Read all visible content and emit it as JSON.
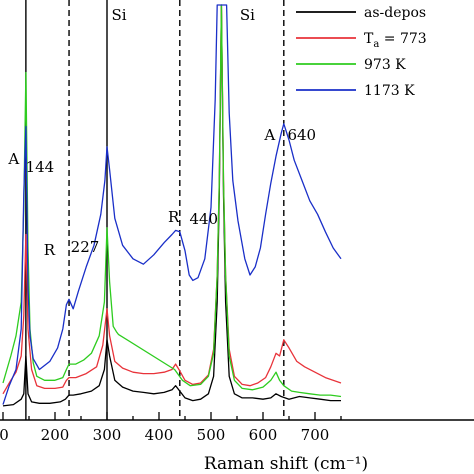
{
  "chart_data": {
    "type": "line",
    "xlabel": "Raman shift (cm⁻¹)",
    "xlim": [
      0,
      750
    ],
    "x_ticks": [
      "0",
      "200",
      "300",
      "400",
      "500",
      "600",
      "700"
    ],
    "x_tick_values": [
      0,
      200,
      300,
      400,
      500,
      600,
      700
    ],
    "ylabel": "",
    "y_ticks_shown": false,
    "reference_lines": [
      {
        "x": 144,
        "style": "solid",
        "label": "Si"
      },
      {
        "x": 227,
        "style": "dashed"
      },
      {
        "x": 440,
        "style": "dashed"
      },
      {
        "x": 640,
        "style": "dashed"
      },
      {
        "x": 300,
        "style": "solid"
      }
    ],
    "annotations": [
      {
        "text": "A",
        "x": 140
      },
      {
        "text": "144",
        "x": 144
      },
      {
        "text": "R",
        "x": 220
      },
      {
        "text": "227",
        "x": 227
      },
      {
        "text": "Si",
        "x": 300
      },
      {
        "text": "R",
        "x": 432
      },
      {
        "text": "440",
        "x": 440
      },
      {
        "text": "Si",
        "x": 520
      },
      {
        "text": "A",
        "x": 640
      },
      {
        "text": "640",
        "x": 640
      }
    ],
    "legend_position": "top-right",
    "legend": [
      {
        "label": "as-depos",
        "color": "#000000"
      },
      {
        "label_main": "T",
        "label_sub": "a",
        "label_rest": " = 773",
        "color": "#e8333a"
      },
      {
        "label": "973 K",
        "color": "#2ecc1f"
      },
      {
        "label": "1173 K",
        "color": "#1a2fc8"
      }
    ],
    "series": [
      {
        "name": "as-depos",
        "color": "#000000",
        "points": [
          [
            100,
            3
          ],
          [
            120,
            4
          ],
          [
            135,
            8
          ],
          [
            140,
            12
          ],
          [
            144,
            40
          ],
          [
            148,
            12
          ],
          [
            155,
            6
          ],
          [
            170,
            5
          ],
          [
            190,
            5
          ],
          [
            210,
            6
          ],
          [
            220,
            8
          ],
          [
            227,
            11
          ],
          [
            235,
            11
          ],
          [
            250,
            12
          ],
          [
            270,
            14
          ],
          [
            285,
            18
          ],
          [
            295,
            30
          ],
          [
            300,
            52
          ],
          [
            305,
            40
          ],
          [
            315,
            22
          ],
          [
            330,
            17
          ],
          [
            350,
            14
          ],
          [
            370,
            13
          ],
          [
            390,
            12
          ],
          [
            410,
            13
          ],
          [
            425,
            15
          ],
          [
            432,
            18
          ],
          [
            440,
            14
          ],
          [
            450,
            9
          ],
          [
            465,
            7
          ],
          [
            480,
            8
          ],
          [
            495,
            12
          ],
          [
            505,
            25
          ],
          [
            512,
            80
          ],
          [
            516,
            160
          ],
          [
            520,
            300
          ],
          [
            524,
            160
          ],
          [
            528,
            80
          ],
          [
            535,
            25
          ],
          [
            545,
            12
          ],
          [
            560,
            9
          ],
          [
            580,
            9
          ],
          [
            600,
            8
          ],
          [
            615,
            9
          ],
          [
            625,
            12
          ],
          [
            635,
            10
          ],
          [
            650,
            8
          ],
          [
            670,
            10
          ],
          [
            690,
            9
          ],
          [
            710,
            8
          ],
          [
            730,
            7
          ],
          [
            750,
            7
          ]
        ]
      },
      {
        "name": "Ta = 773",
        "color": "#e8333a",
        "points": [
          [
            100,
            12
          ],
          [
            115,
            22
          ],
          [
            125,
            28
          ],
          [
            135,
            40
          ],
          [
            140,
            70
          ],
          [
            144,
            130
          ],
          [
            148,
            60
          ],
          [
            155,
            30
          ],
          [
            165,
            18
          ],
          [
            180,
            16
          ],
          [
            200,
            16
          ],
          [
            215,
            17
          ],
          [
            222,
            22
          ],
          [
            227,
            24
          ],
          [
            240,
            24
          ],
          [
            260,
            27
          ],
          [
            280,
            32
          ],
          [
            292,
            48
          ],
          [
            300,
            75
          ],
          [
            305,
            55
          ],
          [
            315,
            36
          ],
          [
            330,
            31
          ],
          [
            350,
            28
          ],
          [
            370,
            27
          ],
          [
            390,
            27
          ],
          [
            410,
            28
          ],
          [
            425,
            30
          ],
          [
            432,
            34
          ],
          [
            440,
            29
          ],
          [
            450,
            22
          ],
          [
            465,
            19
          ],
          [
            480,
            20
          ],
          [
            495,
            26
          ],
          [
            505,
            45
          ],
          [
            512,
            100
          ],
          [
            516,
            170
          ],
          [
            520,
            300
          ],
          [
            524,
            170
          ],
          [
            528,
            100
          ],
          [
            535,
            45
          ],
          [
            545,
            25
          ],
          [
            560,
            19
          ],
          [
            575,
            18
          ],
          [
            590,
            20
          ],
          [
            605,
            24
          ],
          [
            615,
            32
          ],
          [
            625,
            42
          ],
          [
            632,
            40
          ],
          [
            640,
            52
          ],
          [
            650,
            46
          ],
          [
            665,
            36
          ],
          [
            680,
            32
          ],
          [
            700,
            28
          ],
          [
            720,
            24
          ],
          [
            750,
            20
          ]
        ]
      },
      {
        "name": "973 K",
        "color": "#2ecc1f",
        "points": [
          [
            100,
            20
          ],
          [
            115,
            40
          ],
          [
            125,
            55
          ],
          [
            135,
            80
          ],
          [
            140,
            150
          ],
          [
            144,
            250
          ],
          [
            148,
            120
          ],
          [
            152,
            60
          ],
          [
            158,
            35
          ],
          [
            165,
            25
          ],
          [
            180,
            22
          ],
          [
            200,
            22
          ],
          [
            215,
            24
          ],
          [
            222,
            30
          ],
          [
            227,
            34
          ],
          [
            240,
            34
          ],
          [
            255,
            37
          ],
          [
            270,
            42
          ],
          [
            285,
            55
          ],
          [
            295,
            80
          ],
          [
            300,
            135
          ],
          [
            305,
            95
          ],
          [
            312,
            62
          ],
          [
            318,
            58
          ],
          [
            322,
            56
          ],
          [
            430,
            30
          ],
          [
            445,
            22
          ],
          [
            460,
            18
          ],
          [
            480,
            19
          ],
          [
            495,
            25
          ],
          [
            505,
            42
          ],
          [
            512,
            100
          ],
          [
            516,
            170
          ],
          [
            520,
            300
          ],
          [
            524,
            170
          ],
          [
            528,
            100
          ],
          [
            535,
            40
          ],
          [
            545,
            22
          ],
          [
            560,
            16
          ],
          [
            580,
            15
          ],
          [
            600,
            17
          ],
          [
            615,
            22
          ],
          [
            625,
            28
          ],
          [
            632,
            22
          ],
          [
            640,
            18
          ],
          [
            655,
            14
          ],
          [
            670,
            13
          ],
          [
            690,
            12
          ],
          [
            710,
            11
          ],
          [
            730,
            11
          ],
          [
            750,
            10
          ]
        ]
      },
      {
        "name": "1173 K",
        "color": "#1a2fc8",
        "points": [
          [
            100,
            4
          ],
          [
            112,
            18
          ],
          [
            125,
            30
          ],
          [
            135,
            60
          ],
          [
            140,
            160
          ],
          [
            144,
            210
          ],
          [
            148,
            90
          ],
          [
            152,
            55
          ],
          [
            158,
            38
          ],
          [
            170,
            30
          ],
          [
            190,
            36
          ],
          [
            205,
            46
          ],
          [
            215,
            60
          ],
          [
            222,
            78
          ],
          [
            227,
            82
          ],
          [
            235,
            75
          ],
          [
            245,
            88
          ],
          [
            260,
            106
          ],
          [
            275,
            122
          ],
          [
            288,
            145
          ],
          [
            296,
            170
          ],
          [
            300,
            195
          ],
          [
            305,
            178
          ],
          [
            315,
            142
          ],
          [
            330,
            122
          ],
          [
            350,
            112
          ],
          [
            370,
            108
          ],
          [
            390,
            115
          ],
          [
            410,
            124
          ],
          [
            425,
            130
          ],
          [
            432,
            133
          ],
          [
            440,
            132
          ],
          [
            450,
            118
          ],
          [
            458,
            100
          ],
          [
            465,
            96
          ],
          [
            475,
            98
          ],
          [
            488,
            112
          ],
          [
            500,
            150
          ],
          [
            508,
            230
          ],
          [
            512,
            300
          ],
          [
            530,
            300
          ],
          [
            535,
            220
          ],
          [
            542,
            170
          ],
          [
            552,
            140
          ],
          [
            565,
            112
          ],
          [
            575,
            100
          ],
          [
            585,
            106
          ],
          [
            595,
            120
          ],
          [
            605,
            145
          ],
          [
            615,
            168
          ],
          [
            625,
            188
          ],
          [
            635,
            205
          ],
          [
            640,
            212
          ],
          [
            650,
            200
          ],
          [
            660,
            185
          ],
          [
            675,
            170
          ],
          [
            690,
            155
          ],
          [
            705,
            145
          ],
          [
            720,
            132
          ],
          [
            735,
            120
          ],
          [
            750,
            112
          ]
        ]
      }
    ]
  }
}
